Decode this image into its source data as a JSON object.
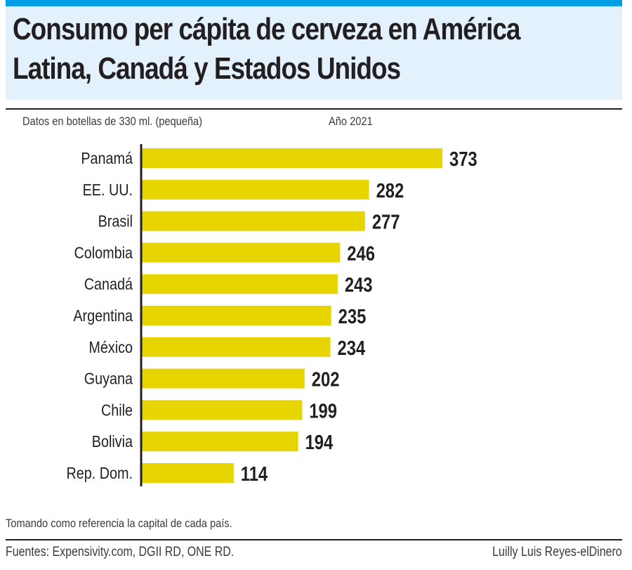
{
  "header": {
    "title_line1": "Consumo per cápita de cerveza en América",
    "title_line2": "Latina, Canadá y Estados Unidos",
    "accent_color": "#009fe3",
    "title_bg_color": "#e2f1fb"
  },
  "subtitle": {
    "units": "Datos en botellas de 330 ml. (pequeña)",
    "year": "Año 2021"
  },
  "footer": {
    "note": "Tomando como referencia la capital de cada país.",
    "sources": "Fuentes: Expensivity.com, DGII RD, ONE RD.",
    "credit": "Luilly Luis Reyes-elDinero"
  },
  "chart_data": {
    "type": "bar",
    "orientation": "horizontal",
    "title": "Consumo per cápita de cerveza en América Latina, Canadá y Estados Unidos",
    "subtitle": "Datos en botellas de 330 ml. (pequeña) — Año 2021",
    "xlabel": "",
    "ylabel": "",
    "categories": [
      "Panamá",
      "EE. UU.",
      "Brasil",
      "Colombia",
      "Canadá",
      "Argentina",
      "México",
      "Guyana",
      "Chile",
      "Bolivia",
      "Rep. Dom."
    ],
    "values": [
      373,
      282,
      277,
      246,
      243,
      235,
      234,
      202,
      199,
      194,
      114
    ],
    "value_labels": [
      "373",
      "282",
      "277",
      "246",
      "243",
      "235",
      "234",
      "202",
      "199",
      "194",
      "114"
    ],
    "xlim": [
      0,
      373
    ],
    "grid": false,
    "legend": "none",
    "bar_color": "#e6d500",
    "data_labels": "outside-end"
  }
}
